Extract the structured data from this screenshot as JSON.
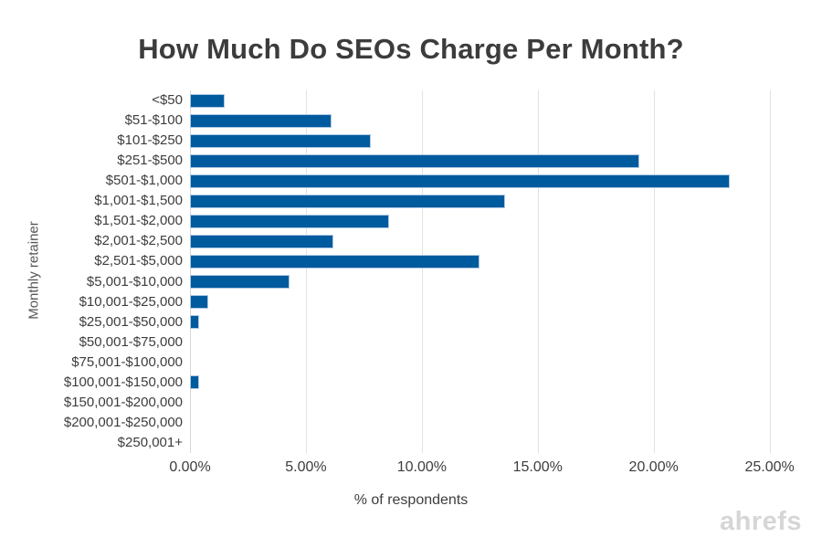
{
  "watermark": "ahrefs",
  "colors": {
    "bar_fill": "#005A9E",
    "bar_border": "#ADC9E2",
    "gridline": "#E2E2E2",
    "zero_axis_line": "#D8D8D8",
    "title_text": "#3C3C3C",
    "axis_text": "#3D3D3D",
    "axis_title_text": "#555555",
    "watermark_text": "#D6D6D6"
  },
  "chart_data": {
    "type": "bar",
    "orientation": "horizontal",
    "title": "How Much Do SEOs Charge Per Month?",
    "xlabel": "% of respondents",
    "ylabel": "Monthly retainer",
    "categories": [
      "<$50",
      "$51-$100",
      "$101-$250",
      "$251-$500",
      "$501-$1,000",
      "$1,001-$1,500",
      "$1,501-$2,000",
      "$2,001-$2,500",
      "$2,501-$5,000",
      "$5,001-$10,000",
      "$10,001-$25,000",
      "$25,001-$50,000",
      "$50,001-$75,000",
      "$75,001-$100,000",
      "$100,001-$150,000",
      "$150,001-$200,000",
      "$200,001-$250,000",
      "$250,001+"
    ],
    "values": [
      1.5,
      6.1,
      7.8,
      19.4,
      23.3,
      13.6,
      8.6,
      6.2,
      12.5,
      4.3,
      0.8,
      0.4,
      0,
      0,
      0.4,
      0,
      0,
      0
    ],
    "x_tick_labels": [
      "0.00%",
      "5.00%",
      "10.00%",
      "15.00%",
      "20.00%",
      "25.00%"
    ],
    "x_tick_values": [
      0,
      5,
      10,
      15,
      20,
      25
    ],
    "xlim": [
      0,
      26
    ],
    "grid": "vertical-only",
    "legend": "none"
  }
}
